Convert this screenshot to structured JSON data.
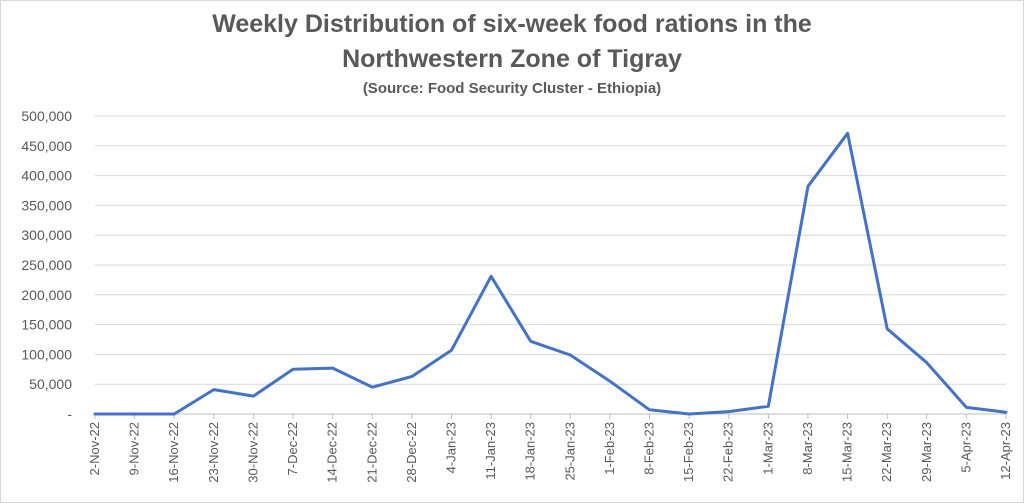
{
  "chart_data": {
    "type": "line",
    "title_line1": "Weekly Distribution of six-week food rations in the",
    "title_line2": "Northwestern Zone of Tigray",
    "subtitle": "(Source: Food Security Cluster - Ethiopia)",
    "xlabel": "",
    "ylabel": "",
    "ylim": [
      0,
      500000
    ],
    "yticks": [
      0,
      50000,
      100000,
      150000,
      200000,
      250000,
      300000,
      350000,
      400000,
      450000,
      500000
    ],
    "ytick_labels": [
      "-",
      "50,000",
      "100,000",
      "150,000",
      "200,000",
      "250,000",
      "300,000",
      "350,000",
      "400,000",
      "450,000",
      "500,000"
    ],
    "grid": true,
    "line_color": "#4472c4",
    "categories": [
      "2-Nov-22",
      "9-Nov-22",
      "16-Nov-22",
      "23-Nov-22",
      "30-Nov-22",
      "7-Dec-22",
      "14-Dec-22",
      "21-Dec-22",
      "28-Dec-22",
      "4-Jan-23",
      "11-Jan-23",
      "18-Jan-23",
      "25-Jan-23",
      "1-Feb-23",
      "8-Feb-23",
      "15-Feb-23",
      "22-Feb-23",
      "1-Mar-23",
      "8-Mar-23",
      "15-Mar-23",
      "22-Mar-23",
      "29-Mar-23",
      "5-Apr-23",
      "12-Apr-23"
    ],
    "values": [
      0,
      0,
      0,
      41000,
      30000,
      75000,
      77000,
      45000,
      63000,
      107000,
      231000,
      122000,
      99000,
      55000,
      7000,
      0,
      4000,
      13000,
      382000,
      471000,
      143000,
      86000,
      11000,
      3000
    ]
  }
}
